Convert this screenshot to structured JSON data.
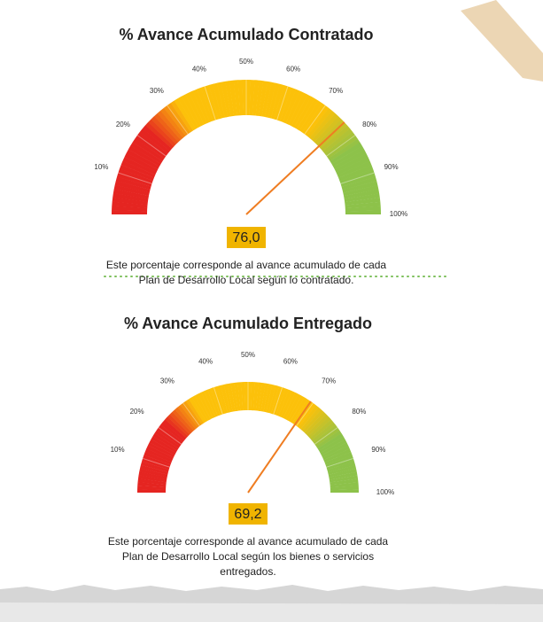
{
  "chart_data": [
    {
      "type": "gauge",
      "title": "% Avance Acumulado Contratado",
      "value": 76.0,
      "value_labels": "76,0",
      "ylim": [
        0,
        100
      ],
      "yticks": [
        {
          "value": 10,
          "label": "10%"
        },
        {
          "value": 20,
          "label": "20%"
        },
        {
          "value": 30,
          "label": "30%"
        },
        {
          "value": 40,
          "label": "40%"
        },
        {
          "value": 50,
          "label": "50%"
        },
        {
          "value": 60,
          "label": "60%"
        },
        {
          "value": 70,
          "label": "70%"
        },
        {
          "value": 80,
          "label": "80%"
        },
        {
          "value": 90,
          "label": "90%"
        },
        {
          "value": 100,
          "label": "100%"
        }
      ],
      "description": [
        "Este porcentaje corresponde al avance acumulado de cada",
        "Plan de Desarrollo Local según lo contratado."
      ]
    },
    {
      "type": "gauge",
      "title": "% Avance Acumulado Entregado",
      "value": 69.2,
      "value_labels": "69,2",
      "ylim": [
        0,
        100
      ],
      "yticks": [
        {
          "value": 10,
          "label": "10%"
        },
        {
          "value": 20,
          "label": "20%"
        },
        {
          "value": 30,
          "label": "30%"
        },
        {
          "value": 40,
          "label": "40%"
        },
        {
          "value": 50,
          "label": "50%"
        },
        {
          "value": 60,
          "label": "60%"
        },
        {
          "value": 70,
          "label": "70%"
        },
        {
          "value": 80,
          "label": "80%"
        },
        {
          "value": 90,
          "label": "90%"
        },
        {
          "value": 100,
          "label": "100%"
        }
      ],
      "description": [
        "Este porcentaje corresponde al avance acumulado de cada",
        "Plan de Desarrollo Local según los bienes o servicios",
        "entregados."
      ]
    }
  ]
}
